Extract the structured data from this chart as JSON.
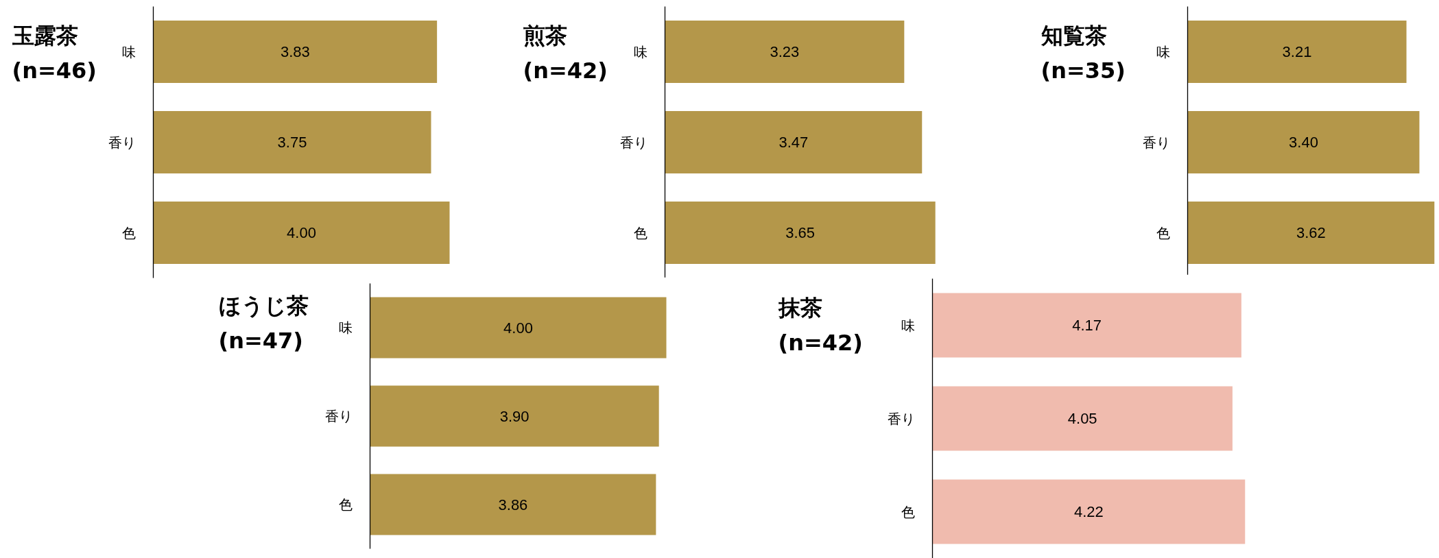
{
  "chart_data": [
    {
      "type": "bar",
      "orientation": "horizontal",
      "title": "玉露茶 (n=46)",
      "categories": [
        "味",
        "香り",
        "色"
      ],
      "values": [
        3.83,
        3.75,
        4.0
      ],
      "value_labels": [
        "3.83",
        "3.75",
        "4.00"
      ],
      "color": "#b4974a",
      "tick_labels": "y"
    },
    {
      "type": "bar",
      "orientation": "horizontal",
      "title": "煎茶 (n=42)",
      "categories": [
        "味",
        "香り",
        "色"
      ],
      "values": [
        3.23,
        3.47,
        3.65
      ],
      "value_labels": [
        "3.23",
        "3.47",
        "3.65"
      ],
      "color": "#b4974a",
      "tick_labels": "y"
    },
    {
      "type": "bar",
      "orientation": "horizontal",
      "title": "知覧茶 (n=35)",
      "categories": [
        "味",
        "香り",
        "色"
      ],
      "values": [
        3.21,
        3.4,
        3.62
      ],
      "value_labels": [
        "3.21",
        "3.40",
        "3.62"
      ],
      "color": "#b4974a",
      "tick_labels": "y"
    },
    {
      "type": "bar",
      "orientation": "horizontal",
      "title": "ほうじ茶 (n=47)",
      "categories": [
        "味",
        "香り",
        "色"
      ],
      "values": [
        4.0,
        3.9,
        3.86
      ],
      "value_labels": [
        "4.00",
        "3.90",
        "3.86"
      ],
      "color": "#b4974a",
      "tick_labels": "y"
    },
    {
      "type": "bar",
      "orientation": "horizontal",
      "title": "抹茶 (n=42)",
      "categories": [
        "味",
        "香り",
        "色"
      ],
      "values": [
        4.17,
        4.05,
        4.22
      ],
      "value_labels": [
        "4.17",
        "4.05",
        "4.22"
      ],
      "color": "#f0bbae",
      "tick_labels": "y"
    }
  ]
}
